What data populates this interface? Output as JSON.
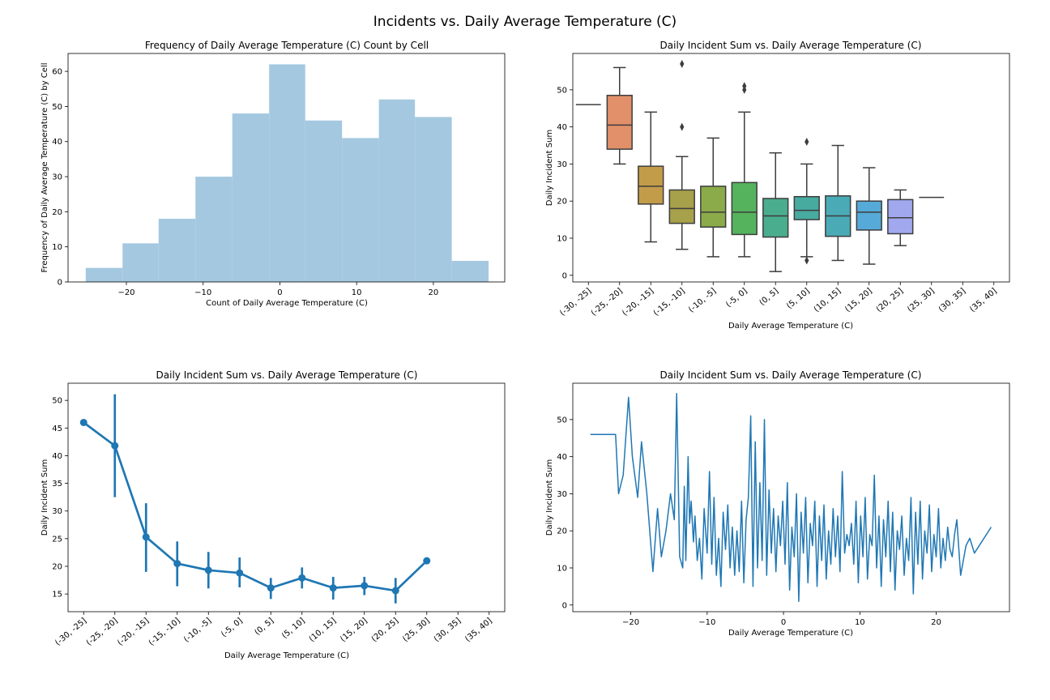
{
  "suptitle": "Incidents vs. Daily Average Temperature (C)",
  "chart_data": [
    {
      "id": "hist",
      "type": "bar",
      "subtype": "histogram",
      "title": "Frequency of Daily Average Temperature (C) Count by Cell",
      "xlabel": "Count of Daily Average Temperature (C)",
      "ylabel": "Frequency of Daily Average Temperature (C) by Cell",
      "color": "#a4c8e0",
      "xlim": [
        -27.6,
        29.3
      ],
      "ylim": [
        0,
        65.1
      ],
      "xticks": [
        -20,
        -10,
        0,
        10,
        20
      ],
      "yticks": [
        0,
        10,
        20,
        30,
        40,
        50,
        60
      ],
      "bins": [
        {
          "x0": -25.3,
          "x1": -20.5,
          "value": 4
        },
        {
          "x0": -20.5,
          "x1": -15.8,
          "value": 11
        },
        {
          "x0": -15.8,
          "x1": -11.0,
          "value": 18
        },
        {
          "x0": -11.0,
          "x1": -6.2,
          "value": 30
        },
        {
          "x0": -6.2,
          "x1": -1.4,
          "value": 48
        },
        {
          "x0": -1.4,
          "x1": 3.3,
          "value": 62
        },
        {
          "x0": 3.3,
          "x1": 8.1,
          "value": 46
        },
        {
          "x0": 8.1,
          "x1": 12.9,
          "value": 41
        },
        {
          "x0": 12.9,
          "x1": 17.6,
          "value": 52
        },
        {
          "x0": 17.6,
          "x1": 22.4,
          "value": 47
        },
        {
          "x0": 22.4,
          "x1": 27.2,
          "value": 6
        }
      ]
    },
    {
      "id": "box",
      "type": "box",
      "title": "Daily Incident Sum vs. Daily Average Temperature (C)",
      "xlabel": "Daily Average Temperature (C)",
      "ylabel": "Daily Incident Sum",
      "ylim": [
        -1.8,
        59.8
      ],
      "yticks": [
        0,
        10,
        20,
        30,
        40,
        50
      ],
      "categories": [
        "(-30, -25]",
        "(-25, -20]",
        "(-20, -15]",
        "(-15, -10]",
        "(-10, -5]",
        "(-5, 0]",
        "(0, 5]",
        "(5, 10]",
        "(10, 15]",
        "(15, 20]",
        "(20, 25]",
        "(25, 30]",
        "(30, 35]",
        "(35, 40]"
      ],
      "boxes": [
        {
          "whislo": 46,
          "q1": 46,
          "med": 46,
          "q3": 46,
          "whishi": 46,
          "fliers": [],
          "color": null
        },
        {
          "whislo": 30,
          "q1": 34,
          "med": 40.5,
          "q3": 48.5,
          "whishi": 56,
          "fliers": [],
          "color": "#e1906a"
        },
        {
          "whislo": 9,
          "q1": 19.2,
          "med": 24,
          "q3": 29.4,
          "whishi": 44,
          "fliers": [],
          "color": "#c39c4a"
        },
        {
          "whislo": 7,
          "q1": 14,
          "med": 18,
          "q3": 23,
          "whishi": 32,
          "fliers": [
            40,
            57
          ],
          "color": "#a6a14a"
        },
        {
          "whislo": 5,
          "q1": 13,
          "med": 17,
          "q3": 24,
          "whishi": 37,
          "fliers": [],
          "color": "#8bab4a"
        },
        {
          "whislo": 5,
          "q1": 11,
          "med": 17,
          "q3": 25,
          "whishi": 44,
          "fliers": [
            50,
            51
          ],
          "color": "#55b35d"
        },
        {
          "whislo": 1,
          "q1": 10.3,
          "med": 16,
          "q3": 20.7,
          "whishi": 33,
          "fliers": [],
          "color": "#4aad8e"
        },
        {
          "whislo": 5,
          "q1": 15,
          "med": 17.5,
          "q3": 21.2,
          "whishi": 30,
          "fliers": [
            4,
            36
          ],
          "color": "#47aba0"
        },
        {
          "whislo": 4,
          "q1": 10.5,
          "med": 16,
          "q3": 21.4,
          "whishi": 35,
          "fliers": [],
          "color": "#4aabb7"
        },
        {
          "whislo": 3,
          "q1": 12.2,
          "med": 17,
          "q3": 20,
          "whishi": 29,
          "fliers": [],
          "color": "#55aad8"
        },
        {
          "whislo": 8,
          "q1": 11.2,
          "med": 15.5,
          "q3": 20.4,
          "whishi": 23,
          "fliers": [],
          "color": "#a1a8ee"
        },
        {
          "whislo": 21,
          "q1": 21,
          "med": 21,
          "q3": 21,
          "whishi": 21,
          "fliers": [],
          "color": null
        },
        null,
        null
      ]
    },
    {
      "id": "point",
      "type": "line",
      "subtype": "pointplot",
      "title": "Daily Incident Sum vs. Daily Average Temperature (C)",
      "xlabel": "Daily Average Temperature (C)",
      "ylabel": "Daily Incident Sum",
      "color": "#1f77b4",
      "ylim": [
        11.8,
        53.1
      ],
      "yticks": [
        15,
        20,
        25,
        30,
        35,
        40,
        45,
        50
      ],
      "categories": [
        "(-30, -25]",
        "(-25, -20]",
        "(-20, -15]",
        "(-15, -10]",
        "(-10, -5]",
        "(-5, 0]",
        "(0, 5]",
        "(5, 10]",
        "(10, 15]",
        "(15, 20]",
        "(20, 25]",
        "(25, 30]",
        "(30, 35]",
        "(35, 40]"
      ],
      "values": [
        46,
        41.8,
        25.3,
        20.5,
        19.3,
        18.8,
        16.1,
        17.9,
        16.1,
        16.5,
        15.6,
        21,
        null,
        null
      ],
      "ci_low": [
        null,
        32.5,
        19,
        16.4,
        16,
        16.2,
        14.1,
        16,
        14,
        14.8,
        13.3,
        null,
        null,
        null
      ],
      "ci_high": [
        null,
        51.1,
        31.4,
        24.5,
        22.6,
        21.6,
        17.9,
        19.8,
        18.1,
        18.1,
        17.9,
        null,
        null,
        null
      ]
    },
    {
      "id": "line",
      "type": "line",
      "title": "Daily Incident Sum vs. Daily Average Temperature (C)",
      "xlabel": "Daily Average Temperature (C)",
      "ylabel": "Daily Incident Sum",
      "color": "#1f77b4",
      "xlim": [
        -27.6,
        29.6
      ],
      "ylim": [
        -1.8,
        59.8
      ],
      "xticks": [
        -20,
        -10,
        0,
        10,
        20
      ],
      "yticks": [
        0,
        10,
        20,
        30,
        40,
        50
      ],
      "x": [
        -25.3,
        -22,
        -21.6,
        -21,
        -20.3,
        -19.8,
        -19.1,
        -18.6,
        -17.9,
        -17.1,
        -16.5,
        -16,
        -15.4,
        -14.8,
        -14.3,
        -14,
        -13.6,
        -13.2,
        -13,
        -12.8,
        -12.5,
        -12.3,
        -12.1,
        -11.8,
        -11.6,
        -11.3,
        -11,
        -10.7,
        -10.4,
        -10,
        -9.7,
        -9.4,
        -9.1,
        -8.8,
        -8.5,
        -8.2,
        -7.9,
        -7.6,
        -7.3,
        -7,
        -6.7,
        -6.4,
        -6.1,
        -5.8,
        -5.5,
        -5.2,
        -4.9,
        -4.6,
        -4.3,
        -4,
        -3.7,
        -3.4,
        -3.1,
        -2.8,
        -2.5,
        -2.2,
        -1.9,
        -1.6,
        -1.3,
        -1,
        -0.7,
        -0.4,
        -0.1,
        0.2,
        0.5,
        0.8,
        1.1,
        1.4,
        1.7,
        2,
        2.3,
        2.6,
        2.9,
        3.2,
        3.5,
        3.8,
        4.1,
        4.4,
        4.7,
        5,
        5.3,
        5.6,
        5.9,
        6.2,
        6.5,
        6.8,
        7.1,
        7.4,
        7.7,
        8,
        8.3,
        8.6,
        8.9,
        9.2,
        9.5,
        9.8,
        10.1,
        10.4,
        10.7,
        11,
        11.3,
        11.6,
        11.9,
        12.2,
        12.5,
        12.8,
        13.1,
        13.4,
        13.7,
        14,
        14.3,
        14.6,
        14.9,
        15.2,
        15.5,
        15.8,
        16.1,
        16.4,
        16.7,
        17,
        17.3,
        17.6,
        17.9,
        18.2,
        18.5,
        18.8,
        19.1,
        19.4,
        19.7,
        20,
        20.3,
        20.6,
        20.9,
        21.2,
        21.5,
        21.8,
        22.1,
        22.4,
        22.7,
        23.2,
        23.9,
        24.4,
        25,
        27.2
      ],
      "y": [
        46,
        46,
        30,
        35,
        56,
        40,
        29,
        44,
        30,
        9,
        26,
        13,
        20,
        30,
        23,
        57,
        13,
        10,
        32,
        12,
        40,
        22,
        28,
        17,
        24,
        12,
        18,
        7,
        26,
        14,
        36,
        11,
        29,
        8,
        18,
        5,
        25,
        15,
        27,
        10,
        21,
        8,
        20,
        9,
        28,
        6,
        23,
        29,
        51,
        5,
        44,
        10,
        33,
        12,
        50,
        8,
        31,
        14,
        26,
        9,
        24,
        16,
        28,
        11,
        33,
        4,
        21,
        13,
        30,
        1,
        25,
        14,
        29,
        6,
        22,
        16,
        28,
        5,
        24,
        12,
        27,
        7,
        20,
        11,
        26,
        13,
        24,
        9,
        36,
        14,
        19,
        16,
        22,
        11,
        28,
        6,
        24,
        13,
        29,
        7,
        19,
        16,
        35,
        10,
        24,
        5,
        23,
        13,
        28,
        9,
        25,
        4,
        20,
        15,
        24,
        8,
        18,
        12,
        29,
        3,
        25,
        11,
        28,
        7,
        20,
        14,
        27,
        9,
        19,
        13,
        26,
        10,
        18,
        12,
        21,
        15,
        13,
        19,
        23,
        8,
        16,
        18,
        14,
        21
      ]
    }
  ]
}
